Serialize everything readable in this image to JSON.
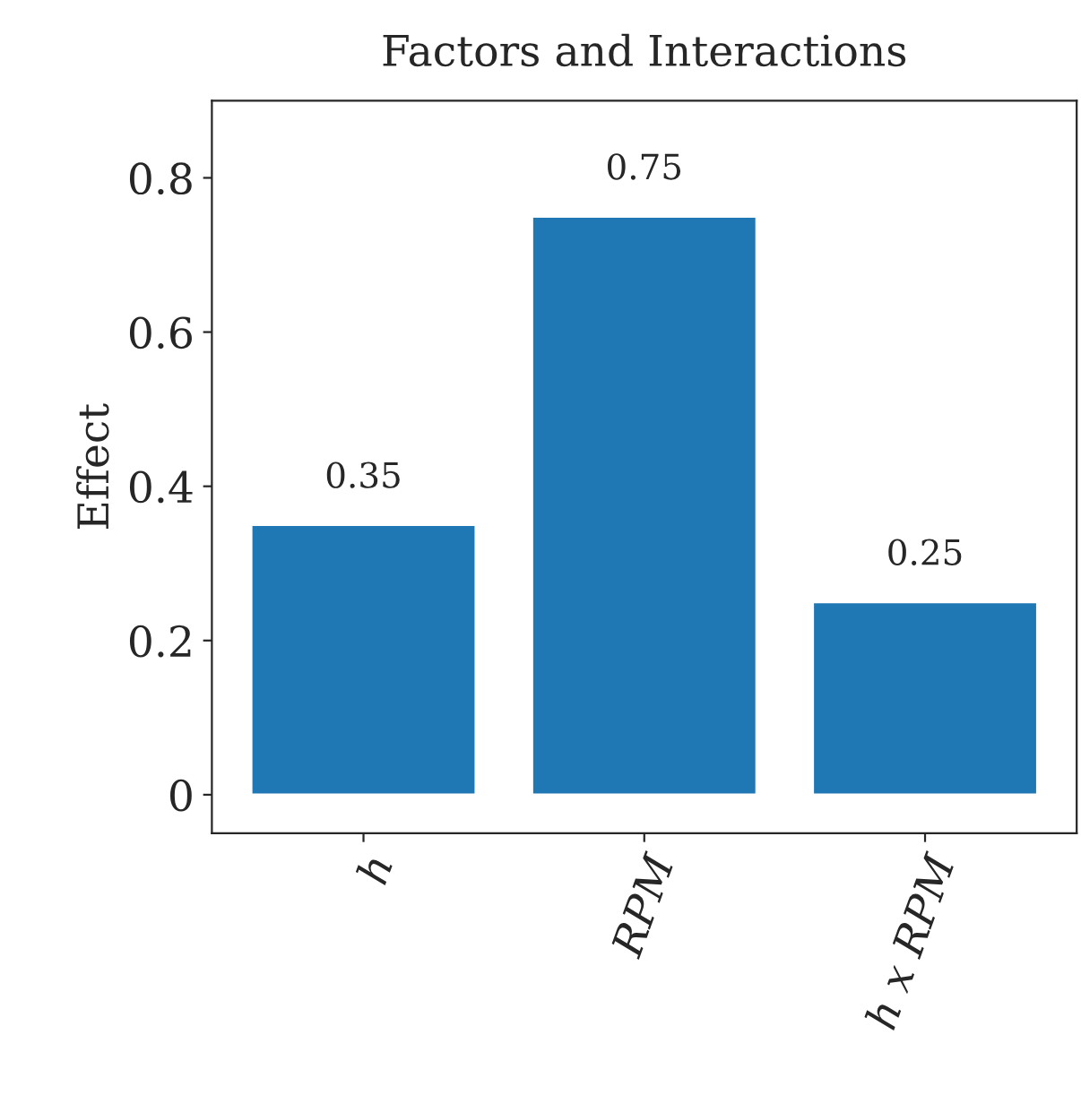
{
  "chart_data": {
    "type": "bar",
    "title": "Factors and Interactions",
    "ylabel": "Effect",
    "categories": [
      "h",
      "RPM",
      "h x RPM"
    ],
    "values": [
      0.35,
      0.75,
      0.25
    ],
    "color": "#1f77b4",
    "data_labels": true,
    "ylim": [
      -0.05,
      0.9
    ],
    "yticks": [
      0,
      0.2,
      0.4,
      0.6,
      0.8
    ],
    "grid": false,
    "legend": false
  }
}
